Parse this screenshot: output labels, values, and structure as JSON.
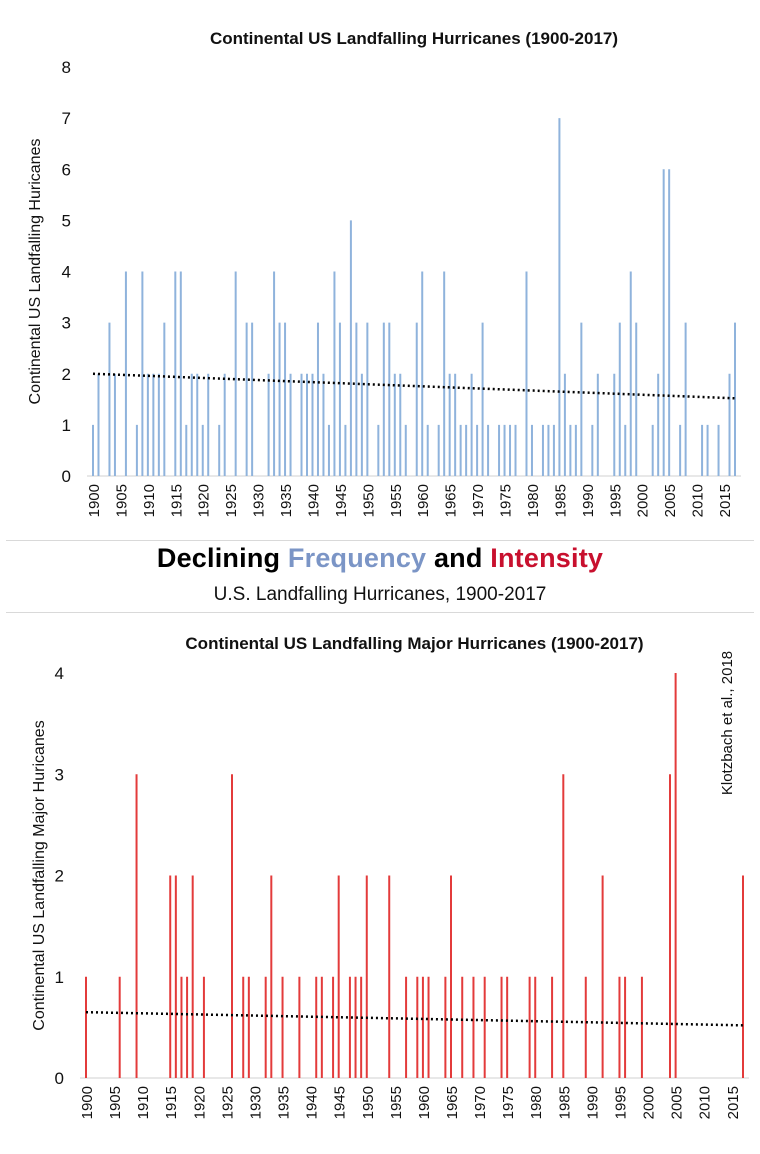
{
  "headline": {
    "word_declining": "Declining",
    "word_frequency": "Frequency",
    "word_and": "and",
    "word_intensity": "Intensity",
    "frequency_color": "#7b95c6",
    "intensity_color": "#c8102e",
    "subtitle": "U.S. Landfalling Hurricanes, 1900-2017"
  },
  "citation": "Klotzbach et al., 2018",
  "chart_data": [
    {
      "type": "bar",
      "title": "Continental US Landfalling Hurricanes (1900-2017)",
      "ylabel": "Continental US Landfalling Huricanes",
      "xlabel": "",
      "ylim": [
        0,
        8
      ],
      "yticks": [
        "0",
        "1",
        "2",
        "3",
        "4",
        "5",
        "6",
        "7",
        "8"
      ],
      "xtick_labels": [
        "1900",
        "1905",
        "1910",
        "1915",
        "1920",
        "1925",
        "1930",
        "1935",
        "1940",
        "1945",
        "1950",
        "1955",
        "1960",
        "1965",
        "1970",
        "1975",
        "1980",
        "1985",
        "1990",
        "1995",
        "2000",
        "2005",
        "2010",
        "2015"
      ],
      "bar_color": "#8fb3dc",
      "trend_color": "#000000",
      "trendline": {
        "start": 2.0,
        "end": 1.52
      },
      "x": [
        1900,
        1901,
        1902,
        1903,
        1904,
        1905,
        1906,
        1907,
        1908,
        1909,
        1910,
        1911,
        1912,
        1913,
        1914,
        1915,
        1916,
        1917,
        1918,
        1919,
        1920,
        1921,
        1922,
        1923,
        1924,
        1925,
        1926,
        1927,
        1928,
        1929,
        1930,
        1931,
        1932,
        1933,
        1934,
        1935,
        1936,
        1937,
        1938,
        1939,
        1940,
        1941,
        1942,
        1943,
        1944,
        1945,
        1946,
        1947,
        1948,
        1949,
        1950,
        1951,
        1952,
        1953,
        1954,
        1955,
        1956,
        1957,
        1958,
        1959,
        1960,
        1961,
        1962,
        1963,
        1964,
        1965,
        1966,
        1967,
        1968,
        1969,
        1970,
        1971,
        1972,
        1973,
        1974,
        1975,
        1976,
        1977,
        1978,
        1979,
        1980,
        1981,
        1982,
        1983,
        1984,
        1985,
        1986,
        1987,
        1988,
        1989,
        1990,
        1991,
        1992,
        1993,
        1994,
        1995,
        1996,
        1997,
        1998,
        1999,
        2000,
        2001,
        2002,
        2003,
        2004,
        2005,
        2006,
        2007,
        2008,
        2009,
        2010,
        2011,
        2012,
        2013,
        2014,
        2015,
        2016,
        2017
      ],
      "values": [
        1,
        2,
        0,
        3,
        2,
        0,
        4,
        0,
        1,
        4,
        2,
        2,
        2,
        3,
        0,
        4,
        4,
        1,
        2,
        2,
        1,
        2,
        0,
        1,
        2,
        0,
        4,
        0,
        3,
        3,
        0,
        0,
        2,
        4,
        3,
        3,
        2,
        0,
        2,
        2,
        2,
        3,
        2,
        1,
        4,
        3,
        1,
        5,
        3,
        2,
        3,
        0,
        1,
        3,
        3,
        2,
        2,
        1,
        0,
        3,
        4,
        1,
        0,
        1,
        4,
        2,
        2,
        1,
        1,
        2,
        1,
        3,
        1,
        0,
        1,
        1,
        1,
        1,
        0,
        4,
        1,
        0,
        1,
        1,
        1,
        7,
        2,
        1,
        1,
        3,
        0,
        1,
        2,
        0,
        0,
        2,
        3,
        1,
        4,
        3,
        0,
        0,
        1,
        2,
        6,
        6,
        0,
        1,
        3,
        0,
        0,
        1,
        1,
        0,
        1,
        0,
        2,
        3
      ]
    },
    {
      "type": "bar",
      "title": "Continental US Landfalling Major Hurricanes (1900-2017)",
      "ylabel": "Continental US Landfalling Major Huricanes",
      "xlabel": "",
      "ylim": [
        0,
        4
      ],
      "yticks": [
        "0",
        "1",
        "2",
        "3",
        "4"
      ],
      "xtick_labels": [
        "1900",
        "1905",
        "1910",
        "1915",
        "1920",
        "1925",
        "1930",
        "1935",
        "1940",
        "1945",
        "1950",
        "1955",
        "1960",
        "1965",
        "1970",
        "1975",
        "1980",
        "1985",
        "1990",
        "1995",
        "2000",
        "2005",
        "2010",
        "2015"
      ],
      "bar_color": "#e33b3b",
      "trend_color": "#000000",
      "trendline": {
        "start": 0.65,
        "end": 0.52
      },
      "x": [
        1900,
        1901,
        1902,
        1903,
        1904,
        1905,
        1906,
        1907,
        1908,
        1909,
        1910,
        1911,
        1912,
        1913,
        1914,
        1915,
        1916,
        1917,
        1918,
        1919,
        1920,
        1921,
        1922,
        1923,
        1924,
        1925,
        1926,
        1927,
        1928,
        1929,
        1930,
        1931,
        1932,
        1933,
        1934,
        1935,
        1936,
        1937,
        1938,
        1939,
        1940,
        1941,
        1942,
        1943,
        1944,
        1945,
        1946,
        1947,
        1948,
        1949,
        1950,
        1951,
        1952,
        1953,
        1954,
        1955,
        1956,
        1957,
        1958,
        1959,
        1960,
        1961,
        1962,
        1963,
        1964,
        1965,
        1966,
        1967,
        1968,
        1969,
        1970,
        1971,
        1972,
        1973,
        1974,
        1975,
        1976,
        1977,
        1978,
        1979,
        1980,
        1981,
        1982,
        1983,
        1984,
        1985,
        1986,
        1987,
        1988,
        1989,
        1990,
        1991,
        1992,
        1993,
        1994,
        1995,
        1996,
        1997,
        1998,
        1999,
        2000,
        2001,
        2002,
        2003,
        2004,
        2005,
        2006,
        2007,
        2008,
        2009,
        2010,
        2011,
        2012,
        2013,
        2014,
        2015,
        2016,
        2017
      ],
      "values": [
        1,
        0,
        0,
        0,
        0,
        0,
        1,
        0,
        0,
        3,
        0,
        0,
        0,
        0,
        0,
        2,
        2,
        1,
        1,
        2,
        0,
        1,
        0,
        0,
        0,
        0,
        3,
        0,
        1,
        1,
        0,
        0,
        1,
        2,
        0,
        1,
        0,
        0,
        1,
        0,
        0,
        1,
        1,
        0,
        1,
        2,
        0,
        1,
        1,
        1,
        2,
        0,
        0,
        0,
        2,
        0,
        0,
        1,
        0,
        1,
        1,
        1,
        0,
        0,
        1,
        2,
        0,
        1,
        0,
        1,
        0,
        1,
        0,
        0,
        1,
        1,
        0,
        0,
        0,
        1,
        1,
        0,
        0,
        1,
        0,
        3,
        0,
        0,
        0,
        1,
        0,
        0,
        2,
        0,
        0,
        1,
        1,
        0,
        0,
        1,
        0,
        0,
        0,
        0,
        3,
        4,
        0,
        0,
        0,
        0,
        0,
        0,
        0,
        0,
        0,
        0,
        0,
        2
      ]
    }
  ]
}
